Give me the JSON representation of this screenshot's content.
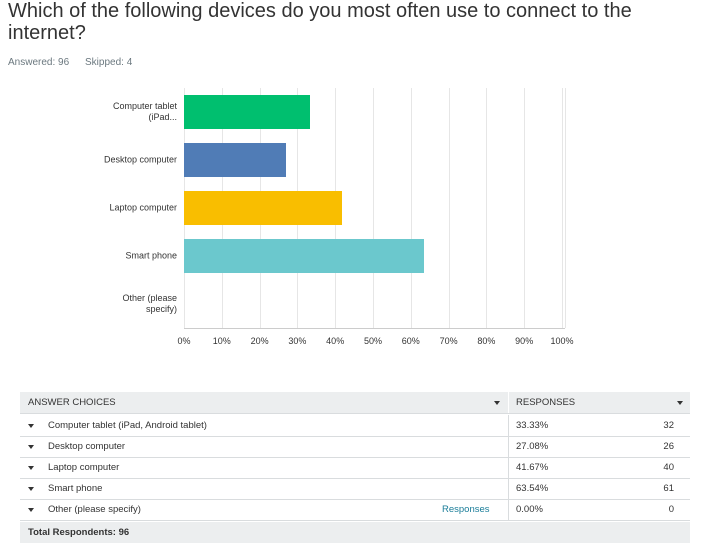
{
  "question": "Which of the following devices do you most often use to connect to the internet?",
  "answered": "Answered: 96",
  "skipped": "Skipped: 4",
  "chart_data": {
    "type": "bar",
    "orientation": "horizontal",
    "categories": [
      "Computer tablet (iPad...",
      "Desktop computer",
      "Laptop computer",
      "Smart phone",
      "Other (please specify)"
    ],
    "values": [
      33.33,
      27.08,
      41.67,
      63.54,
      0
    ],
    "colors": [
      "#00bf6f",
      "#507cb6",
      "#f9be00",
      "#6bc8cd"
    ],
    "xlim": [
      0,
      100
    ],
    "xticks": [
      {
        "value": 0,
        "label": "0%"
      },
      {
        "value": 10,
        "label": "10%"
      },
      {
        "value": 20,
        "label": "20%"
      },
      {
        "value": 30,
        "label": "30%"
      },
      {
        "value": 40,
        "label": "40%"
      },
      {
        "value": 50,
        "label": "50%"
      },
      {
        "value": 60,
        "label": "60%"
      },
      {
        "value": 70,
        "label": "70%"
      },
      {
        "value": 80,
        "label": "80%"
      },
      {
        "value": 90,
        "label": "90%"
      },
      {
        "value": 100,
        "label": "100%"
      }
    ],
    "grid": true
  },
  "table": {
    "header": [
      "ANSWER CHOICES",
      "RESPONSES"
    ],
    "rows": [
      {
        "choice": "Computer tablet (iPad, Android tablet)",
        "percent": "33.33%",
        "count": 32
      },
      {
        "choice": "Desktop computer",
        "percent": "27.08%",
        "count": 26
      },
      {
        "choice": "Laptop computer",
        "percent": "41.67%",
        "count": 40
      },
      {
        "choice": "Smart phone",
        "percent": "63.54%",
        "count": 61
      },
      {
        "choice": "Other (please specify)",
        "link": "Responses",
        "percent": "0.00%",
        "count": 0
      }
    ],
    "footer": "Total Respondents: 96"
  }
}
